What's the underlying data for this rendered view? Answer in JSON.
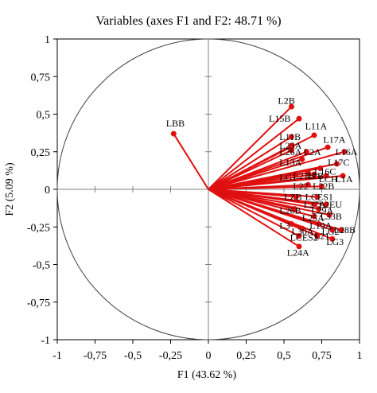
{
  "chart_data": {
    "type": "scatter",
    "subtype": "correlation-circle",
    "title": "Variables (axes F1 and F2: 48.71 %)",
    "xlabel": "F1 (43.62 %)",
    "ylabel": "F2 (5.09 %)",
    "xlim": [
      -1,
      1
    ],
    "ylim": [
      -1,
      1
    ],
    "xticks": [
      "-1",
      "-0,75",
      "-0,5",
      "-0,25",
      "0",
      "0,25",
      "0,5",
      "0,75",
      "1"
    ],
    "yticks": [
      "1",
      "0,75",
      "0,5",
      "0,25",
      "0",
      "-0,25",
      "-0,5",
      "-0,75",
      "-1"
    ],
    "circle_radius": 1,
    "vector_color": "#e01010",
    "circle_color": "#404040",
    "points": [
      {
        "name": "LBB",
        "x": -0.23,
        "y": 0.37
      },
      {
        "name": "L2B",
        "x": 0.55,
        "y": 0.55
      },
      {
        "name": "L15B",
        "x": 0.6,
        "y": 0.47
      },
      {
        "name": "L11A",
        "x": 0.7,
        "y": 0.36
      },
      {
        "name": "L11B",
        "x": 0.55,
        "y": 0.35
      },
      {
        "name": "L17A",
        "x": 0.79,
        "y": 0.28
      },
      {
        "name": "L23A",
        "x": 0.55,
        "y": 0.29
      },
      {
        "name": "L26A",
        "x": 0.55,
        "y": 0.26
      },
      {
        "name": "L2A",
        "x": 0.65,
        "y": 0.25
      },
      {
        "name": "L16A",
        "x": 0.9,
        "y": 0.25
      },
      {
        "name": "L17C",
        "x": 0.85,
        "y": 0.17
      },
      {
        "name": "L13A",
        "x": 0.62,
        "y": 0.2
      },
      {
        "name": "L16C",
        "x": 0.74,
        "y": 0.14
      },
      {
        "name": "LG1",
        "x": 0.58,
        "y": 0.1
      },
      {
        "name": "L21B",
        "x": 0.66,
        "y": 0.11
      },
      {
        "name": "L1B",
        "x": 0.7,
        "y": 0.1
      },
      {
        "name": "LCH",
        "x": 0.78,
        "y": 0.09
      },
      {
        "name": "L1A",
        "x": 0.89,
        "y": 0.09
      },
      {
        "name": "L22",
        "x": 0.66,
        "y": 0.03
      },
      {
        "name": "L22B",
        "x": 0.75,
        "y": 0.02
      },
      {
        "name": "LZB",
        "x": 0.58,
        "y": -0.05
      },
      {
        "name": "LCES1",
        "x": 0.72,
        "y": -0.05
      },
      {
        "name": "L27A",
        "x": 0.7,
        "y": -0.1
      },
      {
        "name": "L2EU",
        "x": 0.78,
        "y": -0.1
      },
      {
        "name": "L26B",
        "x": 0.57,
        "y": -0.13
      },
      {
        "name": "L29A",
        "x": 0.73,
        "y": -0.13
      },
      {
        "name": "L25A",
        "x": 0.7,
        "y": -0.18
      },
      {
        "name": "L33B",
        "x": 0.8,
        "y": -0.17
      },
      {
        "name": "L3",
        "x": 0.55,
        "y": -0.23
      },
      {
        "name": "L19A",
        "x": 0.73,
        "y": -0.23
      },
      {
        "name": "L28B",
        "x": 0.88,
        "y": -0.27
      },
      {
        "name": "L30A",
        "x": 0.62,
        "y": -0.26
      },
      {
        "name": "LG2",
        "x": 0.82,
        "y": -0.27
      },
      {
        "name": "LCES2",
        "x": 0.6,
        "y": -0.31
      },
      {
        "name": "L21",
        "x": 0.72,
        "y": -0.31
      },
      {
        "name": "LG3",
        "x": 0.82,
        "y": -0.33
      },
      {
        "name": "L24A",
        "x": 0.6,
        "y": -0.38
      }
    ],
    "labels": [
      {
        "text": "LBB",
        "x": -0.28,
        "y": 0.44
      },
      {
        "text": "L2B",
        "x": 0.46,
        "y": 0.59
      },
      {
        "text": "L15B",
        "x": 0.4,
        "y": 0.47
      },
      {
        "text": "L11A",
        "x": 0.64,
        "y": 0.42
      },
      {
        "text": "L11B",
        "x": 0.47,
        "y": 0.35
      },
      {
        "text": "L17A",
        "x": 0.76,
        "y": 0.33
      },
      {
        "text": "L23A",
        "x": 0.47,
        "y": 0.29
      },
      {
        "text": "L26A",
        "x": 0.47,
        "y": 0.25
      },
      {
        "text": "L2A",
        "x": 0.63,
        "y": 0.25
      },
      {
        "text": "L16A",
        "x": 0.84,
        "y": 0.25
      },
      {
        "text": "L17C",
        "x": 0.79,
        "y": 0.18
      },
      {
        "text": "L13A",
        "x": 0.47,
        "y": 0.18
      },
      {
        "text": "L16C",
        "x": 0.7,
        "y": 0.12
      },
      {
        "text": "LG1",
        "x": 0.47,
        "y": 0.08
      },
      {
        "text": "L21B",
        "x": 0.56,
        "y": 0.09
      },
      {
        "text": "L1B",
        "x": 0.65,
        "y": 0.09
      },
      {
        "text": "LCH",
        "x": 0.73,
        "y": 0.07
      },
      {
        "text": "L1A",
        "x": 0.84,
        "y": 0.07
      },
      {
        "text": "L22",
        "x": 0.56,
        "y": 0.02
      },
      {
        "text": "L22B",
        "x": 0.69,
        "y": 0.02
      },
      {
        "text": "LZB",
        "x": 0.5,
        "y": -0.05
      },
      {
        "text": "LCES1",
        "x": 0.64,
        "y": -0.05
      },
      {
        "text": "L27A",
        "x": 0.63,
        "y": -0.1
      },
      {
        "text": "L2EU",
        "x": 0.73,
        "y": -0.1
      },
      {
        "text": "L26B",
        "x": 0.47,
        "y": -0.14
      },
      {
        "text": "L29A",
        "x": 0.68,
        "y": -0.14
      },
      {
        "text": "L25A",
        "x": 0.62,
        "y": -0.19
      },
      {
        "text": "L33B",
        "x": 0.74,
        "y": -0.18
      },
      {
        "text": "L3",
        "x": 0.47,
        "y": -0.24
      },
      {
        "text": "L19A",
        "x": 0.67,
        "y": -0.24
      },
      {
        "text": "L28B",
        "x": 0.83,
        "y": -0.27
      },
      {
        "text": "L30A",
        "x": 0.55,
        "y": -0.28
      },
      {
        "text": "LG2",
        "x": 0.75,
        "y": -0.28
      },
      {
        "text": "LCES2",
        "x": 0.54,
        "y": -0.32
      },
      {
        "text": "L21",
        "x": 0.7,
        "y": -0.31
      },
      {
        "text": "LG3",
        "x": 0.78,
        "y": -0.35
      },
      {
        "text": "L24A",
        "x": 0.52,
        "y": -0.42
      }
    ]
  }
}
